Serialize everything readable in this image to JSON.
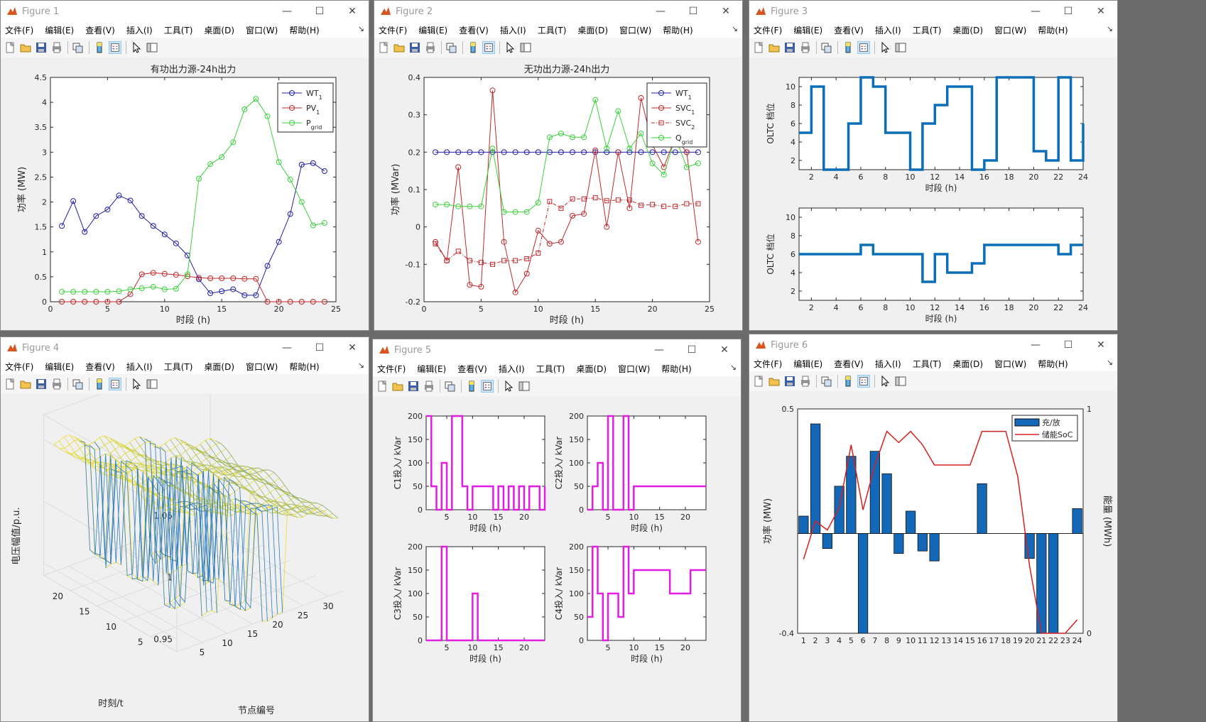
{
  "menu": [
    "文件(F)",
    "编辑(E)",
    "查看(V)",
    "插入(I)",
    "工具(T)",
    "桌面(D)",
    "窗口(W)",
    "帮助(H)"
  ],
  "colors": {
    "blue": "#1f1fa8",
    "red": "#c0282b",
    "green": "#3ad13a",
    "oltc": "#0b6eb8",
    "magenta": "#e21ee2",
    "bar": "#1368b8",
    "soc": "#d42020"
  },
  "fig1": {
    "title": "Figure 1",
    "chart_data": {
      "type": "line",
      "title": "有功出力源-24h出力",
      "xlabel": "时段 (h)",
      "ylabel": "功率 (MW)",
      "xlim": [
        0,
        25
      ],
      "ylim": [
        0,
        4.5
      ],
      "xticks": [
        "0",
        "5",
        "10",
        "15",
        "20",
        "25"
      ],
      "yticks": [
        "0",
        "0.5",
        "1",
        "1.5",
        "2",
        "2.5",
        "3",
        "3.5",
        "4",
        "4.5"
      ],
      "x": [
        1,
        2,
        3,
        4,
        5,
        6,
        7,
        8,
        9,
        10,
        11,
        12,
        13,
        14,
        15,
        16,
        17,
        18,
        19,
        20,
        21,
        22,
        23,
        24
      ],
      "series": [
        {
          "name": "WT",
          "sub": "1",
          "values": [
            1.52,
            2.02,
            1.4,
            1.72,
            1.85,
            2.13,
            2.03,
            1.72,
            1.52,
            1.35,
            1.17,
            0.93,
            0.45,
            0.17,
            0.21,
            0.25,
            0.13,
            0.13,
            0.72,
            1.2,
            1.76,
            2.75,
            2.78,
            2.62
          ]
        },
        {
          "name": "PV",
          "sub": "1",
          "values": [
            0,
            0,
            0,
            0,
            0,
            0,
            0.15,
            0.55,
            0.58,
            0.56,
            0.54,
            0.51,
            0.48,
            0.47,
            0.47,
            0.47,
            0.46,
            0.46,
            0,
            0,
            0,
            0,
            0,
            0
          ]
        },
        {
          "name": "P",
          "sub": "grid",
          "values": [
            0.2,
            0.2,
            0.2,
            0.2,
            0.2,
            0.21,
            0.25,
            0.27,
            0.3,
            0.25,
            0.26,
            0.55,
            2.47,
            2.76,
            2.9,
            3.2,
            3.86,
            4.07,
            3.72,
            2.8,
            2.45,
            2,
            1.53,
            1.58
          ]
        }
      ]
    }
  },
  "fig2": {
    "title": "Figure 2",
    "chart_data": {
      "type": "line",
      "title": "无功出力源-24h出力",
      "xlabel": "时段 (h)",
      "ylabel": "功率 (MVar)",
      "xlim": [
        0,
        25
      ],
      "ylim": [
        -0.2,
        0.4
      ],
      "xticks": [
        "0",
        "5",
        "10",
        "15",
        "20",
        "25"
      ],
      "yticks": [
        "-0.2",
        "-0.1",
        "0",
        "0.1",
        "0.2",
        "0.3",
        "0.4"
      ],
      "x": [
        1,
        2,
        3,
        4,
        5,
        6,
        7,
        8,
        9,
        10,
        11,
        12,
        13,
        14,
        15,
        16,
        17,
        18,
        19,
        20,
        21,
        22,
        23,
        24
      ],
      "series": [
        {
          "name": "WT",
          "sub": "1",
          "values": [
            0.2,
            0.2,
            0.2,
            0.2,
            0.2,
            0.2,
            0.2,
            0.2,
            0.2,
            0.2,
            0.2,
            0.2,
            0.2,
            0.2,
            0.2,
            0.2,
            0.2,
            0.2,
            0.2,
            0.2,
            0.2,
            0.2,
            0.2,
            0.2
          ]
        },
        {
          "name": "SVC",
          "sub": "1",
          "values": [
            -0.04,
            -0.09,
            0.16,
            -0.155,
            -0.16,
            0.365,
            -0.04,
            -0.175,
            -0.125,
            -0.01,
            -0.045,
            -0.04,
            0.03,
            0.035,
            0.205,
            0,
            0.2,
            0.05,
            0.345,
            0.22,
            0.16,
            0.24,
            0.2,
            -0.04
          ]
        },
        {
          "name": "SVC",
          "sub": "2",
          "values": [
            -0.045,
            -0.09,
            -0.065,
            -0.09,
            -0.095,
            -0.1,
            -0.09,
            -0.09,
            -0.085,
            -0.07,
            0.068,
            0.05,
            0.075,
            0.075,
            0.078,
            0.07,
            0.072,
            0.072,
            0.058,
            0.06,
            0.055,
            0.055,
            0.062,
            0.062
          ]
        },
        {
          "name": "Q",
          "sub": "grid",
          "values": [
            0.06,
            0.06,
            0.055,
            0.055,
            0.055,
            0.21,
            0.04,
            0.04,
            0.04,
            0.065,
            0.24,
            0.25,
            0.24,
            0.24,
            0.34,
            0.21,
            0.31,
            0.21,
            0.25,
            0.17,
            0.14,
            0.24,
            0.16,
            0.17
          ]
        }
      ]
    }
  },
  "fig3": {
    "title": "Figure 3",
    "chart_data": [
      {
        "type": "step",
        "xlabel": "时段 (h)",
        "ylabel": "OLTC 档位",
        "xlim": [
          1,
          24
        ],
        "ylim": [
          1,
          11
        ],
        "xticks": [
          "2",
          "4",
          "6",
          "8",
          "10",
          "12",
          "14",
          "16",
          "18",
          "20",
          "22",
          "24"
        ],
        "yticks": [
          "2",
          "4",
          "6",
          "8",
          "10"
        ],
        "values": [
          5,
          10,
          1,
          1,
          6,
          11,
          10,
          5,
          5,
          1,
          6,
          8,
          10,
          10,
          1,
          2,
          11,
          11,
          11,
          3,
          2,
          11,
          2,
          6
        ]
      },
      {
        "type": "step",
        "xlabel": "时段 (h)",
        "ylabel": "OLTC 档位",
        "xlim": [
          1,
          24
        ],
        "ylim": [
          1,
          11
        ],
        "xticks": [
          "2",
          "4",
          "6",
          "8",
          "10",
          "12",
          "14",
          "16",
          "18",
          "20",
          "22",
          "24"
        ],
        "yticks": [
          "2",
          "4",
          "6",
          "8",
          "10"
        ],
        "values": [
          6,
          6,
          6,
          6,
          6,
          7,
          6,
          6,
          6,
          6,
          3,
          6,
          4,
          4,
          5,
          7,
          7,
          7,
          7,
          7,
          7,
          6,
          7,
          7
        ]
      }
    ]
  },
  "fig4": {
    "title": "Figure 4",
    "chart_data": {
      "type": "mesh3d",
      "zlabel": "电压幅值/p.u.",
      "xlabel": "节点编号",
      "ylabel": "时刻/t",
      "zticks": [
        "0.95",
        "1",
        "1.05"
      ],
      "xticks": [
        "5",
        "10",
        "15",
        "20",
        "25",
        "30"
      ],
      "yticks": [
        "5",
        "10",
        "15",
        "20"
      ]
    }
  },
  "fig5": {
    "title": "Figure 5",
    "chart_data": [
      {
        "type": "step",
        "xlabel": "时段 (h)",
        "ylabel": "C1投入/ kVar",
        "xlim": [
          1,
          24
        ],
        "ylim": [
          0,
          200
        ],
        "xticks": [
          "5",
          "10",
          "15",
          "20"
        ],
        "yticks": [
          "0",
          "50",
          "100",
          "150",
          "200"
        ],
        "values": [
          200,
          50,
          0,
          100,
          0,
          200,
          200,
          50,
          0,
          50,
          50,
          50,
          50,
          0,
          50,
          0,
          50,
          0,
          50,
          0,
          50,
          50,
          0,
          50
        ]
      },
      {
        "type": "step",
        "xlabel": "时段 (h)",
        "ylabel": "C2投入/ kVar",
        "xlim": [
          1,
          24
        ],
        "ylim": [
          0,
          200
        ],
        "xticks": [
          "5",
          "10",
          "15",
          "20"
        ],
        "yticks": [
          "0",
          "50",
          "100",
          "150",
          "200"
        ],
        "values": [
          0,
          50,
          100,
          0,
          200,
          0,
          0,
          200,
          0,
          50,
          50,
          50,
          50,
          50,
          50,
          50,
          50,
          50,
          50,
          50,
          50,
          50,
          50,
          50
        ]
      },
      {
        "type": "step",
        "xlabel": "时段 (h)",
        "ylabel": "C3投入/ kVar",
        "xlim": [
          1,
          24
        ],
        "ylim": [
          0,
          200
        ],
        "xticks": [
          "5",
          "10",
          "15",
          "20"
        ],
        "yticks": [
          "0",
          "50",
          "100",
          "150",
          "200"
        ],
        "values": [
          0,
          0,
          0,
          200,
          0,
          0,
          0,
          0,
          0,
          100,
          0,
          0,
          0,
          0,
          0,
          0,
          0,
          0,
          0,
          0,
          0,
          0,
          0,
          0
        ]
      },
      {
        "type": "step",
        "xlabel": "时段 (h)",
        "ylabel": "C4投入/ kVar",
        "xlim": [
          1,
          24
        ],
        "ylim": [
          0,
          200
        ],
        "xticks": [
          "5",
          "10",
          "15",
          "20"
        ],
        "yticks": [
          "0",
          "50",
          "100",
          "150",
          "200"
        ],
        "values": [
          50,
          200,
          100,
          0,
          100,
          100,
          50,
          200,
          100,
          150,
          150,
          150,
          150,
          150,
          150,
          150,
          100,
          100,
          100,
          100,
          150,
          150,
          150,
          150
        ]
      }
    ]
  },
  "fig6": {
    "title": "Figure 6",
    "chart_data": {
      "type": "bar",
      "xlabel": "",
      "ylabel": "功率 (MW)",
      "ylabel_right": "能量 (MWh)",
      "ylim": [
        -0.4,
        0.5
      ],
      "ylim_right": [
        0,
        1
      ],
      "yticks_left": [
        "0.5",
        "-0.4"
      ],
      "yticks_right": [
        "1",
        "0"
      ],
      "categories": [
        "1",
        "2",
        "3",
        "4",
        "5",
        "6",
        "7",
        "8",
        "9",
        "10",
        "11",
        "12",
        "13",
        "14",
        "15",
        "16",
        "17",
        "18",
        "19",
        "20",
        "21",
        "22",
        "23",
        "24"
      ],
      "series": [
        {
          "name": "充/放",
          "values": [
            0.07,
            0.44,
            -0.06,
            0.19,
            0.31,
            -0.4,
            0.33,
            0.24,
            -0.08,
            0.09,
            -0.07,
            -0.11,
            0,
            0,
            0,
            0.2,
            0,
            0,
            0,
            -0.1,
            -0.4,
            -0.4,
            0,
            0.1
          ]
        },
        {
          "name": "储能SoC",
          "values": [
            0.33,
            0.5,
            0.46,
            0.56,
            0.84,
            0.55,
            0.75,
            0.9,
            0.85,
            0.9,
            0.84,
            0.75,
            0.75,
            0.75,
            0.75,
            0.9,
            0.9,
            0.9,
            0.7,
            0.3,
            0,
            0,
            0,
            0.06
          ]
        }
      ]
    }
  }
}
